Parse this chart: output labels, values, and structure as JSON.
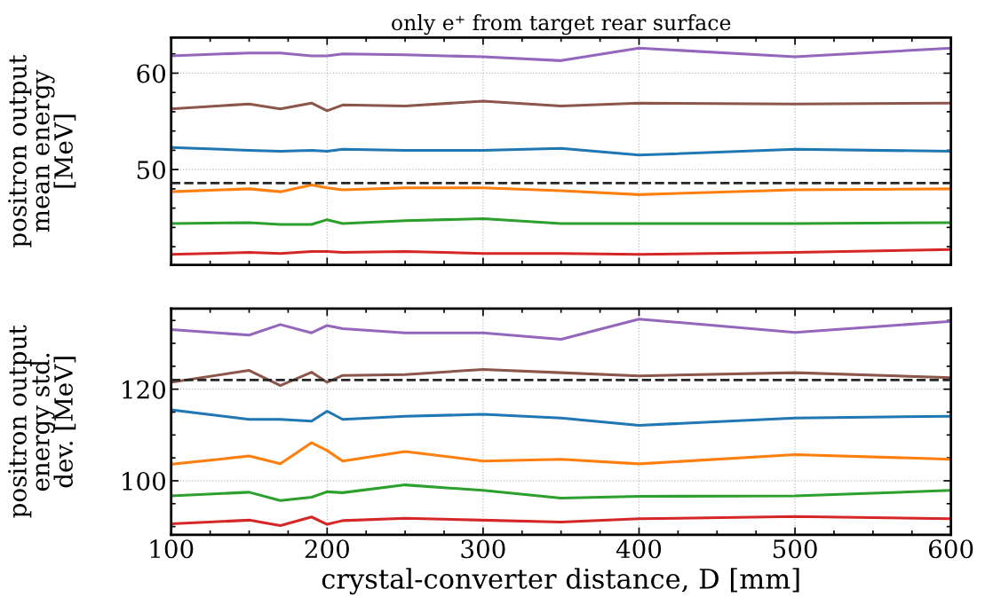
{
  "chart_data": [
    {
      "type": "line",
      "title": "only e⁺ from target rear surface",
      "ylabel": "positron output\nmean energy\n[MeV]",
      "x": [
        100,
        150,
        170,
        190,
        200,
        210,
        250,
        300,
        350,
        400,
        500,
        600
      ],
      "xlim": [
        100,
        600
      ],
      "xticks": [
        100,
        {
          "value": 125,
          "label": null
        },
        {
          "value": 150,
          "label": null
        },
        {
          "value": 175,
          "label": null
        },
        200,
        {
          "value": 225,
          "label": null
        },
        {
          "value": 250,
          "label": null
        },
        {
          "value": 275,
          "label": null
        },
        300,
        {
          "value": 325,
          "label": null
        },
        {
          "value": 350,
          "label": null
        },
        {
          "value": 375,
          "label": null
        },
        400,
        {
          "value": 425,
          "label": null
        },
        {
          "value": 450,
          "label": null
        },
        {
          "value": 475,
          "label": null
        },
        500,
        {
          "value": 525,
          "label": null
        },
        {
          "value": 550,
          "label": null
        },
        {
          "value": 575,
          "label": null
        },
        600
      ],
      "ylim": [
        40.1,
        63.7
      ],
      "yticks": [
        {
          "value": 42,
          "label": null
        },
        {
          "value": 44,
          "label": null
        },
        {
          "value": 46,
          "label": null
        },
        {
          "value": 48,
          "label": null
        },
        50,
        {
          "value": 52,
          "label": null
        },
        {
          "value": 54,
          "label": null
        },
        {
          "value": 56,
          "label": null
        },
        {
          "value": 58,
          "label": null
        },
        60,
        {
          "value": 62,
          "label": null
        }
      ],
      "tick_labels": "y",
      "grid": true,
      "line_style": "solid",
      "marker": "none",
      "series": [
        {
          "color": "#9467bd",
          "values": [
            61.8,
            62.1,
            62.1,
            61.8,
            61.8,
            62.0,
            61.9,
            61.7,
            61.3,
            62.6,
            61.7,
            62.6
          ]
        },
        {
          "color": "#8c564b",
          "values": [
            56.3,
            56.8,
            56.3,
            56.9,
            56.1,
            56.7,
            56.6,
            57.1,
            56.6,
            56.9,
            56.8,
            56.9
          ]
        },
        {
          "color": "#1f77b4",
          "values": [
            52.3,
            52.0,
            51.9,
            52.0,
            51.9,
            52.1,
            52.0,
            52.0,
            52.2,
            51.5,
            52.1,
            51.9
          ]
        },
        {
          "color": "#ff7f0e",
          "values": [
            47.7,
            48.0,
            47.7,
            48.4,
            48.1,
            47.9,
            48.1,
            48.1,
            47.8,
            47.4,
            47.9,
            48.0
          ]
        },
        {
          "color": "#2ca02c",
          "values": [
            44.4,
            44.5,
            44.3,
            44.3,
            44.8,
            44.4,
            44.7,
            44.9,
            44.4,
            44.4,
            44.4,
            44.5
          ]
        },
        {
          "color": "#d62728",
          "values": [
            41.2,
            41.4,
            41.3,
            41.5,
            41.5,
            41.4,
            41.5,
            41.3,
            41.3,
            41.2,
            41.4,
            41.7
          ]
        }
      ],
      "ref_lines": [
        {
          "axis": "y",
          "value": 48.6,
          "color": "#262626",
          "line_style": "dashed"
        }
      ]
    },
    {
      "type": "line",
      "xlabel": "crystal-converter distance, D [mm]",
      "ylabel": "positron output\nenergy std.\ndev. [MeV]",
      "x": [
        100,
        150,
        170,
        190,
        200,
        210,
        250,
        300,
        350,
        400,
        500,
        600
      ],
      "xlim": [
        100,
        600
      ],
      "xticks": [
        100,
        {
          "value": 125,
          "label": null
        },
        {
          "value": 150,
          "label": null
        },
        {
          "value": 175,
          "label": null
        },
        200,
        {
          "value": 225,
          "label": null
        },
        {
          "value": 250,
          "label": null
        },
        {
          "value": 275,
          "label": null
        },
        300,
        {
          "value": 325,
          "label": null
        },
        {
          "value": 350,
          "label": null
        },
        {
          "value": 375,
          "label": null
        },
        400,
        {
          "value": 425,
          "label": null
        },
        {
          "value": 450,
          "label": null
        },
        {
          "value": 475,
          "label": null
        },
        500,
        {
          "value": 525,
          "label": null
        },
        {
          "value": 550,
          "label": null
        },
        {
          "value": 575,
          "label": null
        },
        600
      ],
      "ylim": [
        88.2,
        137.6
      ],
      "yticks": [
        {
          "value": 90,
          "label": null
        },
        {
          "value": 95,
          "label": null
        },
        100,
        {
          "value": 105,
          "label": null
        },
        {
          "value": 110,
          "label": null
        },
        {
          "value": 115,
          "label": null
        },
        120,
        {
          "value": 125,
          "label": null
        },
        {
          "value": 130,
          "label": null
        },
        {
          "value": 135,
          "label": null
        }
      ],
      "grid": true,
      "line_style": "solid",
      "marker": "none",
      "series": [
        {
          "color": "#9467bd",
          "values": [
            133.0,
            131.8,
            134.1,
            132.3,
            133.9,
            133.2,
            132.3,
            132.3,
            130.9,
            135.3,
            132.4,
            134.8
          ]
        },
        {
          "color": "#8c564b",
          "values": [
            121.5,
            124.1,
            120.8,
            123.7,
            121.5,
            123.0,
            123.2,
            124.3,
            123.6,
            122.9,
            123.6,
            122.5
          ]
        },
        {
          "color": "#1f77b4",
          "values": [
            115.5,
            113.4,
            113.4,
            113.0,
            115.2,
            113.4,
            114.1,
            114.5,
            113.7,
            112.1,
            113.7,
            114.1
          ]
        },
        {
          "color": "#ff7f0e",
          "values": [
            103.6,
            105.4,
            103.7,
            108.3,
            106.6,
            104.3,
            106.4,
            104.3,
            104.7,
            103.7,
            105.7,
            104.7
          ]
        },
        {
          "color": "#2ca02c",
          "values": [
            96.7,
            97.5,
            95.7,
            96.4,
            97.6,
            97.4,
            99.1,
            97.9,
            96.2,
            96.6,
            96.7,
            97.9
          ]
        },
        {
          "color": "#d62728",
          "values": [
            90.6,
            91.4,
            90.2,
            92.1,
            90.5,
            91.3,
            91.8,
            91.4,
            91.0,
            91.7,
            92.2,
            91.7
          ]
        }
      ],
      "ref_lines": [
        {
          "axis": "y",
          "value": 122.0,
          "color": "#262626",
          "line_style": "dashed"
        }
      ]
    }
  ]
}
